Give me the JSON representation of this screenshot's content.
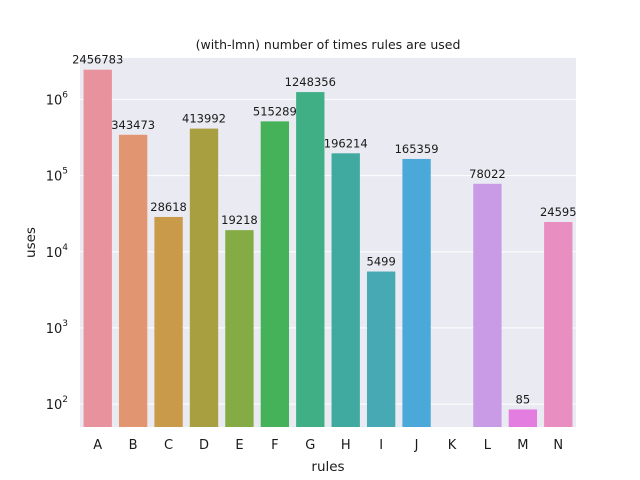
{
  "chart_data": {
    "type": "bar",
    "title": "(with-lmn) number of times rules are used",
    "xlabel": "rules",
    "ylabel": "uses",
    "yscale": "log",
    "ylim": [
      50,
      3500000
    ],
    "grid": true,
    "legend": "none",
    "categories": [
      "A",
      "B",
      "C",
      "D",
      "E",
      "F",
      "G",
      "H",
      "I",
      "J",
      "K",
      "L",
      "M",
      "N"
    ],
    "values": [
      2456783,
      343473,
      28618,
      413992,
      19218,
      515289,
      1248356,
      196214,
      5499,
      165359,
      null,
      78022,
      85,
      24595
    ],
    "data_labels": [
      "2456783",
      "343473",
      "28618",
      "413992",
      "19218",
      "515289",
      "1248356",
      "196214",
      "5499",
      "165359",
      "",
      "78022",
      "85",
      "24595"
    ],
    "colors": [
      "#e8929e",
      "#e29571",
      "#c89a4a",
      "#a8a040",
      "#84ab44",
      "#45b25a",
      "#40af85",
      "#41aaa0",
      "#47a9b4",
      "#4aa9d8",
      "#9aa8e6",
      "#c99be6",
      "#e37ddf",
      "#e98ec0"
    ],
    "ytick_labels": [
      {
        "value": 100,
        "base": "10",
        "exp": "2"
      },
      {
        "value": 1000,
        "base": "10",
        "exp": "3"
      },
      {
        "value": 10000,
        "base": "10",
        "exp": "4"
      },
      {
        "value": 100000,
        "base": "10",
        "exp": "5"
      },
      {
        "value": 1000000,
        "base": "10",
        "exp": "6"
      }
    ],
    "background": "#eaeaf2",
    "gridcolor": "#ffffff"
  }
}
